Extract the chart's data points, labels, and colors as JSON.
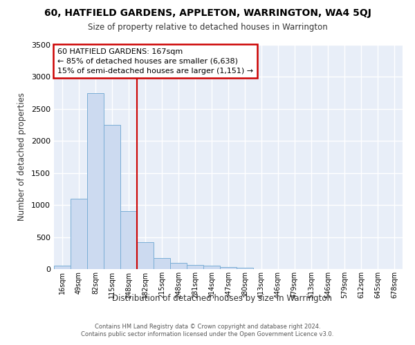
{
  "title": "60, HATFIELD GARDENS, APPLETON, WARRINGTON, WA4 5QJ",
  "subtitle": "Size of property relative to detached houses in Warrington",
  "xlabel": "Distribution of detached houses by size in Warrington",
  "ylabel": "Number of detached properties",
  "bar_labels": [
    "16sqm",
    "49sqm",
    "82sqm",
    "115sqm",
    "148sqm",
    "182sqm",
    "215sqm",
    "248sqm",
    "281sqm",
    "314sqm",
    "347sqm",
    "380sqm",
    "413sqm",
    "446sqm",
    "479sqm",
    "513sqm",
    "546sqm",
    "579sqm",
    "612sqm",
    "645sqm",
    "678sqm"
  ],
  "bar_values": [
    50,
    1100,
    2750,
    2250,
    900,
    420,
    170,
    100,
    60,
    50,
    30,
    20,
    0,
    0,
    0,
    0,
    0,
    0,
    0,
    0,
    0
  ],
  "bar_color": "#ccdaf0",
  "bar_edge_color": "#7aaed6",
  "red_line_x": 4.5,
  "annotation_text": "60 HATFIELD GARDENS: 167sqm\n← 85% of detached houses are smaller (6,638)\n15% of semi-detached houses are larger (1,151) →",
  "annotation_box_color": "#ffffff",
  "annotation_box_edge": "#cc0000",
  "ylim": [
    0,
    3500
  ],
  "yticks": [
    0,
    500,
    1000,
    1500,
    2000,
    2500,
    3000,
    3500
  ],
  "bg_color": "#e8eef8",
  "grid_color": "#ffffff",
  "fig_bg_color": "#ffffff",
  "footer_line1": "Contains HM Land Registry data © Crown copyright and database right 2024.",
  "footer_line2": "Contains public sector information licensed under the Open Government Licence v3.0."
}
